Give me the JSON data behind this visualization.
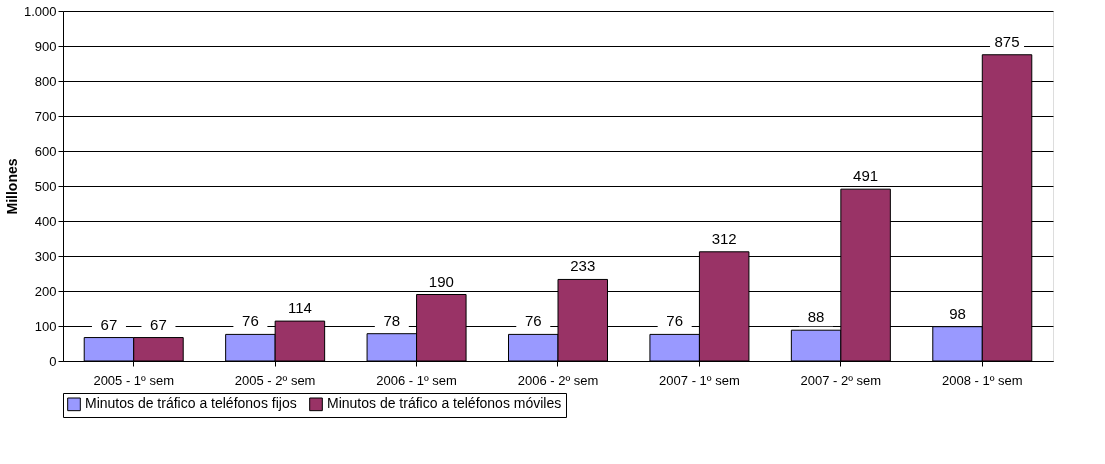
{
  "chart_data": {
    "type": "bar",
    "ylabel": "Millones",
    "categories": [
      "2005 - 1º sem",
      "2005 - 2º sem",
      "2006 - 1º sem",
      "2006 - 2º sem",
      "2007 - 1º sem",
      "2007 - 2º sem",
      "2008 - 1º sem"
    ],
    "series": [
      {
        "name": "Minutos de tráfico a teléfonos fijos",
        "color": "#9999ff",
        "values": [
          67,
          76,
          78,
          76,
          76,
          88,
          98
        ]
      },
      {
        "name": "Minutos de tráfico a teléfonos móviles",
        "color": "#993366",
        "values": [
          67,
          114,
          190,
          233,
          312,
          491,
          875
        ]
      }
    ],
    "ylim": [
      0,
      1000
    ],
    "yticks": [
      0,
      100,
      200,
      300,
      400,
      500,
      600,
      700,
      800,
      900,
      {
        "value": 1000,
        "label": "1.000"
      }
    ],
    "grid": "y",
    "legend": "bottom",
    "data_labels": true
  }
}
